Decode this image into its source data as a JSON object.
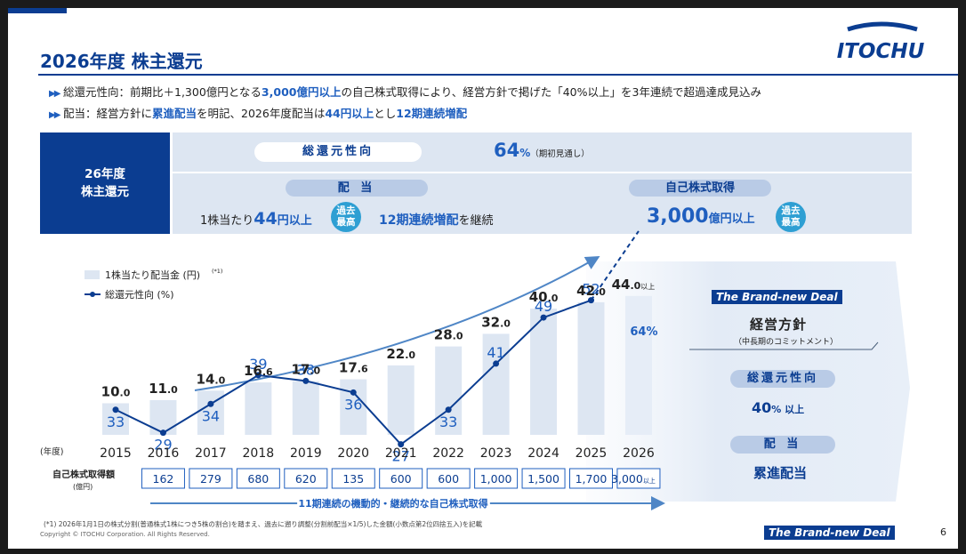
{
  "header": {
    "title": "2026年度 株主還元",
    "logo_text": "ITOCHU"
  },
  "bullets": [
    {
      "parts": [
        {
          "t": "総還元性向：前期比＋1,300億円となる",
          "hl": false
        },
        {
          "t": "3,000億円以上",
          "hl": true
        },
        {
          "t": "の自己株式取得により、経営方針で掲げた「40%以上」を3年連続で超過達成見込み",
          "hl": false
        }
      ]
    },
    {
      "parts": [
        {
          "t": "配当：経営方針に",
          "hl": false
        },
        {
          "t": "累進配当",
          "hl": true
        },
        {
          "t": "を明記、2026年度配当は",
          "hl": false
        },
        {
          "t": "44円以上",
          "hl": true
        },
        {
          "t": "とし",
          "hl": false
        },
        {
          "t": "12期連続増配",
          "hl": true
        }
      ]
    }
  ],
  "summary": {
    "left_title_1": "26年度",
    "left_title_2": "株主還元",
    "payout_label": "総還元性向",
    "payout_value": "64",
    "payout_unit": "%",
    "payout_note": "（期初見通し）",
    "dividend_label": "配 当",
    "dividend_prefix": "1株当たり",
    "dividend_value": "44",
    "dividend_unit": "円以上",
    "dividend_badge_1": "過去",
    "dividend_badge_2": "最高",
    "dividend_streak": "12期連続増配",
    "dividend_streak_suffix": "を継続",
    "buyback_label": "自己株式取得",
    "buyback_value": "3,000",
    "buyback_unit": "億円以上",
    "buyback_badge_1": "過去",
    "buyback_badge_2": "最高"
  },
  "chart_data": {
    "type": "bar",
    "legend": [
      {
        "name": "1株当たり配当金 (円)",
        "sup": "(*1)",
        "kind": "bar"
      },
      {
        "name": "総還元性向 (%)",
        "kind": "line"
      }
    ],
    "x_axis_label": "(年度)",
    "categories": [
      "2015",
      "2016",
      "2017",
      "2018",
      "2019",
      "2020",
      "2021",
      "2022",
      "2023",
      "2024",
      "2025",
      "2026"
    ],
    "series": [
      {
        "name": "1株当たり配当金 (円)",
        "type": "bar",
        "values": [
          10.0,
          11.0,
          14.0,
          16.6,
          17.0,
          17.6,
          22.0,
          28.0,
          32.0,
          40.0,
          42.0,
          44.0
        ],
        "labels": [
          [
            "10",
            ".0"
          ],
          [
            "11",
            ".0"
          ],
          [
            "14",
            ".0"
          ],
          [
            "16",
            ".6"
          ],
          [
            "17",
            ".0"
          ],
          [
            "17",
            ".6"
          ],
          [
            "22",
            ".0"
          ],
          [
            "28",
            ".0"
          ],
          [
            "32",
            ".0"
          ],
          [
            "40",
            ".0"
          ],
          [
            "42",
            ".0"
          ],
          [
            "44",
            ".0"
          ]
        ],
        "last_label_suffix": "以上"
      },
      {
        "name": "総還元性向 (%)",
        "type": "line",
        "values": [
          33,
          29,
          34,
          39,
          38,
          36,
          27,
          33,
          41,
          49,
          52,
          64
        ],
        "labels": [
          "33",
          "29",
          "34",
          "39",
          "38",
          "36",
          "27",
          "33",
          "41",
          "49",
          "52",
          "64%"
        ]
      }
    ],
    "buyback_row_label": "自己株式取得額",
    "buyback_row_unit": "(億円)",
    "buyback_values": [
      "162",
      "279",
      "680",
      "620",
      "135",
      "600",
      "600",
      "1,000",
      "1,500",
      "1,700",
      "3,000"
    ],
    "buyback_last_suffix": "以上",
    "buyback_caption": "11期連続の機動的・継続的な自己株式取得",
    "colors": {
      "bar": "#dde6f2",
      "bar_last": "#e6edf7",
      "line": "#0b3d91",
      "label": "#1f5fbf"
    }
  },
  "deal": {
    "brand_the": "The",
    "brand_rest": "Brand-new Deal",
    "policy_title": "経営方針",
    "policy_sub": "（中長期のコミットメント）",
    "payout_label": "総還元性向",
    "payout_value": "40",
    "payout_unit": "% 以上",
    "dividend_label": "配 当",
    "dividend_value": "累進配当"
  },
  "footer": {
    "footnote": "(*1) 2026年1月1日の株式分割(普通株式1株につき5株の割合)を踏まえ、過去に遡り調整(分割前配当×1/5)した金額(小数点第2位四捨五入)を記載",
    "copyright": "Copyright © ITOCHU Corporation. All Rights Reserved.",
    "brand_the": "The",
    "brand_rest": "Brand-new Deal",
    "page": "6"
  }
}
